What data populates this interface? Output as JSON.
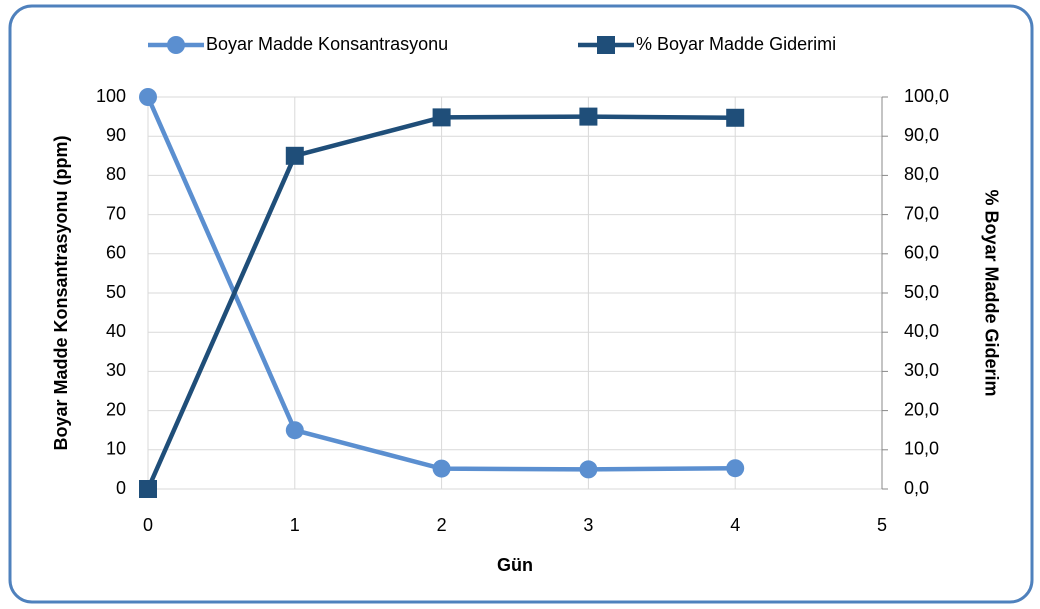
{
  "chart_data": {
    "type": "line",
    "x": [
      0,
      1,
      2,
      3,
      4
    ],
    "xlabel": "Gün",
    "ylabel": "Boyar Madde Konsantrasyonu (ppm)",
    "y2label": "% Boyar Madde Giderim",
    "xlim": [
      0,
      5
    ],
    "xticks": [
      0,
      1,
      2,
      3,
      4,
      5
    ],
    "ylim": [
      0,
      100
    ],
    "yticks": [
      0,
      10,
      20,
      30,
      40,
      50,
      60,
      70,
      80,
      90,
      100
    ],
    "y2lim": [
      0,
      100
    ],
    "y2ticks": [
      {
        "value": 0,
        "label": "0,0"
      },
      {
        "value": 10,
        "label": "10,0"
      },
      {
        "value": 20,
        "label": "20,0"
      },
      {
        "value": 30,
        "label": "30,0"
      },
      {
        "value": 40,
        "label": "40,0"
      },
      {
        "value": 50,
        "label": "50,0"
      },
      {
        "value": 60,
        "label": "60,0"
      },
      {
        "value": 70,
        "label": "70,0"
      },
      {
        "value": 80,
        "label": "80,0"
      },
      {
        "value": 90,
        "label": "90,0"
      },
      {
        "value": 100,
        "label": "100,0"
      }
    ],
    "grid": true,
    "legend": "top",
    "series": [
      {
        "name": "Boyar Madde Konsantrasyonu",
        "color": "#5b8fd0",
        "marker": "circle",
        "values": [
          100,
          15,
          5.2,
          5,
          5.3
        ]
      },
      {
        "name": "% Boyar Madde Giderimi",
        "color": "#1f4e79",
        "marker": "square",
        "axis": "y2",
        "values": [
          0,
          85,
          94.8,
          95,
          94.7
        ]
      }
    ]
  }
}
